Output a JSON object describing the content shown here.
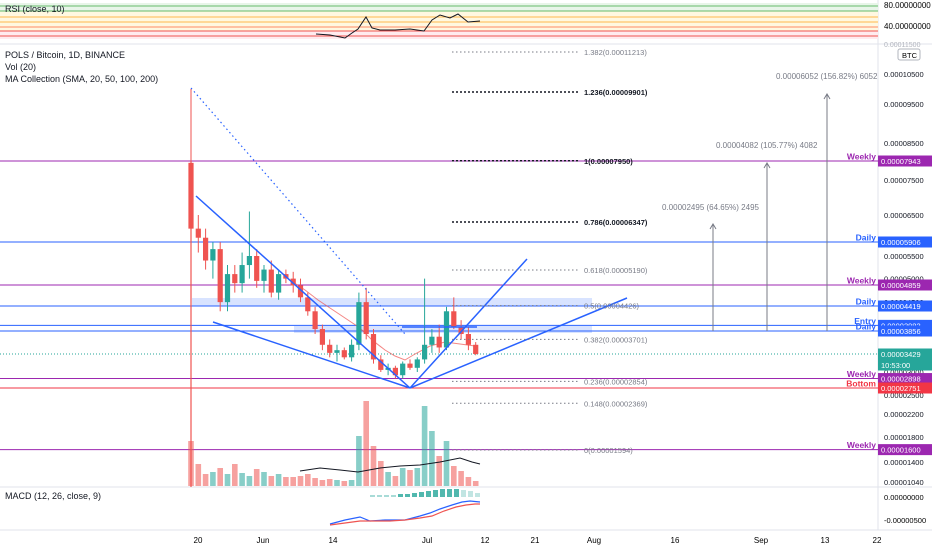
{
  "header": {
    "symbol_line": "POLS / Bitcoin, 1D, BINANCE",
    "vol_label": "Vol (20)",
    "ma_label": "MA Collection (SMA, 20, 50, 100, 200)",
    "rsi_label": "RSI (close, 10)",
    "macd_label": "MACD (12, 26, close, 9)"
  },
  "colors": {
    "up": "#26a69a",
    "down": "#ef5350",
    "level": "#2962ff",
    "weekly": "#9c27b0",
    "bottom": "#f23645",
    "price": "#26a69a",
    "gray": "#787b86",
    "blue_line": "#2962ff"
  },
  "price_axis": {
    "currency": "BTC",
    "ticks": [
      "0.00010500",
      "0.00009500",
      "0.00008500",
      "0.00007500",
      "0.00006500",
      "0.00005500",
      "0.00005000",
      "0.00004500",
      "0.00003000",
      "0.00002500",
      "0.00002200",
      "0.00001800",
      "0.00001400",
      "0.00001040"
    ]
  },
  "rsi_axis": {
    "ticks": [
      "80.00000000",
      "40.00000000"
    ],
    "cut": "0.00011500"
  },
  "macd_axis": {
    "ticks": [
      "0.00000000",
      "-0.00000500"
    ]
  },
  "time_axis": {
    "labels": [
      "20",
      "Jun",
      "14",
      "Jul",
      "12",
      "21",
      "Aug",
      "16",
      "Sep",
      "13",
      "22"
    ]
  },
  "price_tags": [
    {
      "key": "weekly_1",
      "label": "Weekly",
      "value": "0.00007943",
      "kind": "weekly"
    },
    {
      "key": "daily_1",
      "label": "Daily",
      "value": "0.00005906",
      "kind": "daily"
    },
    {
      "key": "weekly_2",
      "label": "Weekly",
      "value": "0.00004859",
      "kind": "weekly"
    },
    {
      "key": "daily_2",
      "label": "Daily",
      "value": "0.00004419",
      "kind": "daily"
    },
    {
      "key": "entry",
      "label": "Entry",
      "value": "0.00003983",
      "kind": "entry"
    },
    {
      "key": "daily_3",
      "label": "Daily",
      "value": "0.00003856",
      "kind": "daily"
    },
    {
      "key": "last",
      "label": "",
      "value": "0.00003429",
      "sub": "10:53:00",
      "kind": "last"
    },
    {
      "key": "weekly_3",
      "label": "Weekly",
      "value": "0.00002898",
      "kind": "weekly"
    },
    {
      "key": "bottom",
      "label": "Bottom",
      "value": "0.00002751",
      "kind": "bottom"
    },
    {
      "key": "weekly_4",
      "label": "Weekly",
      "value": "0.00001600",
      "kind": "weekly"
    }
  ],
  "fib_levels": [
    {
      "ratio": "1.382",
      "value": "0.00011213",
      "bold": false
    },
    {
      "ratio": "1.236",
      "value": "0.00009901",
      "bold": true
    },
    {
      "ratio": "1",
      "value": "0.00007950",
      "bold": true
    },
    {
      "ratio": "0.786",
      "value": "0.00006347",
      "bold": true
    },
    {
      "ratio": "0.618",
      "value": "0.00005190",
      "bold": false
    },
    {
      "ratio": "0.5",
      "value": "0.00004426",
      "bold": false
    },
    {
      "ratio": "0.382",
      "value": "0.00003701",
      "bold": false
    },
    {
      "ratio": "0.236",
      "value": "0.00002854",
      "bold": false
    },
    {
      "ratio": "0.148",
      "value": "0.00002369",
      "bold": false
    },
    {
      "ratio": "0",
      "value": "0.00001594",
      "bold": false
    }
  ],
  "targets": [
    {
      "text": "0.00002495 (64.65%) 2495"
    },
    {
      "text": "0.00004082 (105.77%) 4082"
    },
    {
      "text": "0.00006052 (156.82%) 6052"
    }
  ],
  "chart_data": {
    "type": "candlestick",
    "title": "POLS / Bitcoin, 1D, BINANCE",
    "candles": [
      {
        "o": 7.9e-05,
        "h": 0.0001,
        "l": 5.9e-05,
        "c": 6.2e-05
      },
      {
        "o": 6.2e-05,
        "h": 6.5e-05,
        "l": 5.6e-05,
        "c": 6e-05
      },
      {
        "o": 6e-05,
        "h": 6.2e-05,
        "l": 5.2e-05,
        "c": 5.4e-05
      },
      {
        "o": 5.4e-05,
        "h": 5.9e-05,
        "l": 5e-05,
        "c": 5.7e-05
      },
      {
        "o": 5.7e-05,
        "h": 5.9e-05,
        "l": 4.3e-05,
        "c": 4.5e-05
      },
      {
        "o": 4.5e-05,
        "h": 5.3e-05,
        "l": 4.3e-05,
        "c": 5.1e-05
      },
      {
        "o": 5.1e-05,
        "h": 5.3e-05,
        "l": 4.7e-05,
        "c": 4.9e-05
      },
      {
        "o": 4.9e-05,
        "h": 5.6e-05,
        "l": 4.7e-05,
        "c": 5.3e-05
      },
      {
        "o": 5.3e-05,
        "h": 6.6e-05,
        "l": 5e-05,
        "c": 5.5e-05
      },
      {
        "o": 5.5e-05,
        "h": 5.7e-05,
        "l": 4.8e-05,
        "c": 4.95e-05
      },
      {
        "o": 4.95e-05,
        "h": 5.3e-05,
        "l": 4.7e-05,
        "c": 5.2e-05
      },
      {
        "o": 5.2e-05,
        "h": 5.4e-05,
        "l": 4.6e-05,
        "c": 4.7e-05
      },
      {
        "o": 4.7e-05,
        "h": 5.2e-05,
        "l": 4.55e-05,
        "c": 5.1e-05
      },
      {
        "o": 5.1e-05,
        "h": 5.2e-05,
        "l": 4.9e-05,
        "c": 5e-05
      },
      {
        "o": 5e-05,
        "h": 5.15e-05,
        "l": 4.7e-05,
        "c": 4.85e-05
      },
      {
        "o": 4.85e-05,
        "h": 5e-05,
        "l": 4.5e-05,
        "c": 4.6e-05
      },
      {
        "o": 4.6e-05,
        "h": 4.7e-05,
        "l": 4.2e-05,
        "c": 4.3e-05
      },
      {
        "o": 4.3e-05,
        "h": 4.4e-05,
        "l": 3.8e-05,
        "c": 3.9e-05
      },
      {
        "o": 3.9e-05,
        "h": 4e-05,
        "l": 3.5e-05,
        "c": 3.6e-05
      },
      {
        "o": 3.6e-05,
        "h": 3.7e-05,
        "l": 3.35e-05,
        "c": 3.45e-05
      },
      {
        "o": 3.45e-05,
        "h": 3.6e-05,
        "l": 3.25e-05,
        "c": 3.5e-05
      },
      {
        "o": 3.5e-05,
        "h": 3.55e-05,
        "l": 3.3e-05,
        "c": 3.35e-05
      },
      {
        "o": 3.35e-05,
        "h": 3.7e-05,
        "l": 3.25e-05,
        "c": 3.6e-05
      },
      {
        "o": 3.6e-05,
        "h": 4.7e-05,
        "l": 3.5e-05,
        "c": 4.5e-05
      },
      {
        "o": 4.5e-05,
        "h": 4.8e-05,
        "l": 3.7e-05,
        "c": 3.8e-05
      },
      {
        "o": 3.8e-05,
        "h": 3.9e-05,
        "l": 3.2e-05,
        "c": 3.3e-05
      },
      {
        "o": 3.3e-05,
        "h": 3.4e-05,
        "l": 3e-05,
        "c": 3.05e-05
      },
      {
        "o": 3.05e-05,
        "h": 3.2e-05,
        "l": 2.95e-05,
        "c": 3.1e-05
      },
      {
        "o": 3.1e-05,
        "h": 3.15e-05,
        "l": 2.9e-05,
        "c": 2.95e-05
      },
      {
        "o": 2.95e-05,
        "h": 3.25e-05,
        "l": 2.9e-05,
        "c": 3.2e-05
      },
      {
        "o": 3.2e-05,
        "h": 3.3e-05,
        "l": 3.05e-05,
        "c": 3.1e-05
      },
      {
        "o": 3.1e-05,
        "h": 3.35e-05,
        "l": 3e-05,
        "c": 3.3e-05
      },
      {
        "o": 3.3e-05,
        "h": 5e-05,
        "l": 3.2e-05,
        "c": 3.6e-05
      },
      {
        "o": 3.6e-05,
        "h": 3.9e-05,
        "l": 3.45e-05,
        "c": 3.75e-05
      },
      {
        "o": 3.75e-05,
        "h": 4e-05,
        "l": 3.45e-05,
        "c": 3.55e-05
      },
      {
        "o": 3.55e-05,
        "h": 4.4e-05,
        "l": 3.5e-05,
        "c": 4.3e-05
      },
      {
        "o": 4.3e-05,
        "h": 4.6e-05,
        "l": 3.9e-05,
        "c": 3.95e-05
      },
      {
        "o": 3.95e-05,
        "h": 4.1e-05,
        "l": 3.7e-05,
        "c": 3.8e-05
      },
      {
        "o": 3.8e-05,
        "h": 3.95e-05,
        "l": 3.5e-05,
        "c": 3.6e-05
      },
      {
        "o": 3.6e-05,
        "h": 3.65e-05,
        "l": 3.4e-05,
        "c": 3.429e-05
      }
    ]
  }
}
